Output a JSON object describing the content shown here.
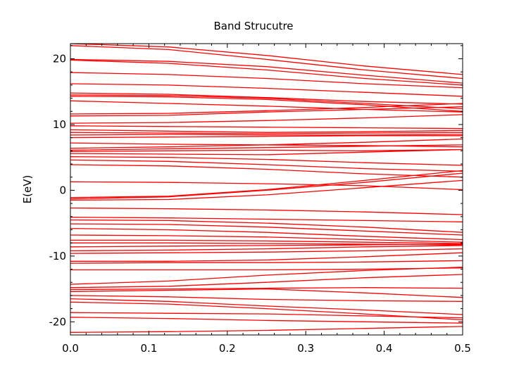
{
  "chart_data": {
    "type": "line",
    "title": "Band Strucutre",
    "xlabel": "",
    "ylabel": "E(eV)",
    "xlim": [
      0.0,
      0.5
    ],
    "ylim": [
      -22,
      22.3
    ],
    "xticks": [
      0.0,
      0.1,
      0.2,
      0.3,
      0.4,
      0.5
    ],
    "xtick_labels": [
      "0.0",
      "0.1",
      "0.2",
      "0.3",
      "0.4",
      "0.5"
    ],
    "yticks": [
      -20,
      -10,
      0,
      10,
      20
    ],
    "ytick_labels": [
      "-20",
      "-10",
      "0",
      "10",
      "20"
    ],
    "grid": false,
    "line_color": "#ff0000",
    "x": [
      0.0,
      0.125,
      0.25,
      0.375,
      0.5
    ],
    "series": [
      {
        "values": [
          22.3,
          21.8,
          20.5,
          18.9,
          17.6
        ]
      },
      {
        "values": [
          22.0,
          21.4,
          19.9,
          18.3,
          17.0
        ]
      },
      {
        "values": [
          19.9,
          19.6,
          18.8,
          17.5,
          16.3
        ]
      },
      {
        "values": [
          19.8,
          19.3,
          18.3,
          17.0,
          16.0
        ]
      },
      {
        "values": [
          17.9,
          17.6,
          17.0,
          16.2,
          15.6
        ]
      },
      {
        "values": [
          16.2,
          16.0,
          15.5,
          14.9,
          14.3
        ]
      },
      {
        "values": [
          14.8,
          14.6,
          14.1,
          13.5,
          13.1
        ]
      },
      {
        "values": [
          14.5,
          14.4,
          14.0,
          13.2,
          12.4
        ]
      },
      {
        "values": [
          14.3,
          14.2,
          13.8,
          13.0,
          12.0
        ]
      },
      {
        "values": [
          13.6,
          13.2,
          12.8,
          12.3,
          11.9
        ]
      },
      {
        "values": [
          11.6,
          11.7,
          12.1,
          12.6,
          13.2
        ]
      },
      {
        "values": [
          11.3,
          11.4,
          11.9,
          12.3,
          12.7
        ]
      },
      {
        "values": [
          10.2,
          10.3,
          10.6,
          11.0,
          11.5
        ]
      },
      {
        "values": [
          9.8,
          9.7,
          9.6,
          9.5,
          9.4
        ]
      },
      {
        "values": [
          9.2,
          9.0,
          8.8,
          8.9,
          9.1
        ]
      },
      {
        "values": [
          8.8,
          8.7,
          8.6,
          8.7,
          8.8
        ]
      },
      {
        "values": [
          8.4,
          8.5,
          8.4,
          8.4,
          8.5
        ]
      },
      {
        "values": [
          8.0,
          8.1,
          8.2,
          8.3,
          8.3
        ]
      },
      {
        "values": [
          7.2,
          7.0,
          6.9,
          6.8,
          6.6
        ]
      },
      {
        "values": [
          6.4,
          6.6,
          6.9,
          7.3,
          7.8
        ]
      },
      {
        "values": [
          6.1,
          6.3,
          6.5,
          6.7,
          6.9
        ]
      },
      {
        "values": [
          5.9,
          6.0,
          6.1,
          6.0,
          6.2
        ]
      },
      {
        "values": [
          5.6,
          5.5,
          5.4,
          5.8,
          6.2
        ]
      },
      {
        "values": [
          5.1,
          5.0,
          4.7,
          4.2,
          3.8
        ]
      },
      {
        "values": [
          4.6,
          4.4,
          3.9,
          3.3,
          2.9
        ]
      },
      {
        "values": [
          3.9,
          3.7,
          3.2,
          2.5,
          2.0
        ]
      },
      {
        "values": [
          1.3,
          1.2,
          1.0,
          0.7,
          0.1
        ]
      },
      {
        "values": [
          -1.1,
          -0.9,
          0.1,
          1.5,
          3.0
        ]
      },
      {
        "values": [
          -1.3,
          -1.0,
          0.0,
          1.2,
          2.6
        ]
      },
      {
        "values": [
          -1.5,
          -1.4,
          -0.7,
          0.4,
          1.5
        ]
      },
      {
        "values": [
          -2.7,
          -2.8,
          -3.0,
          -3.3,
          -3.7
        ]
      },
      {
        "values": [
          -4.1,
          -4.2,
          -4.4,
          -4.6,
          -4.8
        ]
      },
      {
        "values": [
          -4.5,
          -4.6,
          -5.0,
          -5.6,
          -6.4
        ]
      },
      {
        "values": [
          -5.1,
          -5.2,
          -5.6,
          -6.2,
          -6.8
        ]
      },
      {
        "values": [
          -5.8,
          -6.0,
          -6.4,
          -7.0,
          -7.5
        ]
      },
      {
        "values": [
          -6.8,
          -6.9,
          -7.1,
          -7.5,
          -7.9
        ]
      },
      {
        "values": [
          -7.6,
          -7.6,
          -7.7,
          -7.9,
          -8.1
        ]
      },
      {
        "values": [
          -8.0,
          -8.0,
          -8.1,
          -8.2,
          -8.3
        ]
      },
      {
        "values": [
          -8.6,
          -8.5,
          -8.4,
          -8.3,
          -8.2
        ]
      },
      {
        "values": [
          -9.2,
          -9.1,
          -8.9,
          -8.6,
          -8.4
        ]
      },
      {
        "values": [
          -9.6,
          -9.5,
          -9.4,
          -9.2,
          -8.9
        ]
      },
      {
        "values": [
          -10.8,
          -10.8,
          -10.6,
          -10.1,
          -9.5
        ]
      },
      {
        "values": [
          -11.1,
          -11.0,
          -11.0,
          -10.9,
          -10.7
        ]
      },
      {
        "values": [
          -12.1,
          -12.1,
          -12.1,
          -12.0,
          -11.8
        ]
      },
      {
        "values": [
          -14.3,
          -13.8,
          -12.9,
          -12.2,
          -11.7
        ]
      },
      {
        "values": [
          -14.8,
          -14.6,
          -14.0,
          -13.3,
          -12.8
        ]
      },
      {
        "values": [
          -15.1,
          -15.0,
          -14.9,
          -14.8,
          -14.9
        ]
      },
      {
        "values": [
          -15.4,
          -15.2,
          -15.0,
          -15.6,
          -16.3
        ]
      },
      {
        "values": [
          -16.0,
          -16.2,
          -16.6,
          -16.8,
          -16.9
        ]
      },
      {
        "values": [
          -16.5,
          -16.9,
          -17.6,
          -18.2,
          -18.9
        ]
      },
      {
        "values": [
          -17.0,
          -17.3,
          -18.0,
          -18.8,
          -19.7
        ]
      },
      {
        "values": [
          -18.6,
          -18.7,
          -18.8,
          -19.1,
          -19.4
        ]
      },
      {
        "values": [
          -19.3,
          -19.5,
          -19.8,
          -20.0,
          -20.2
        ]
      },
      {
        "values": [
          -21.6,
          -21.5,
          -21.3,
          -21.0,
          -20.7
        ]
      }
    ]
  }
}
